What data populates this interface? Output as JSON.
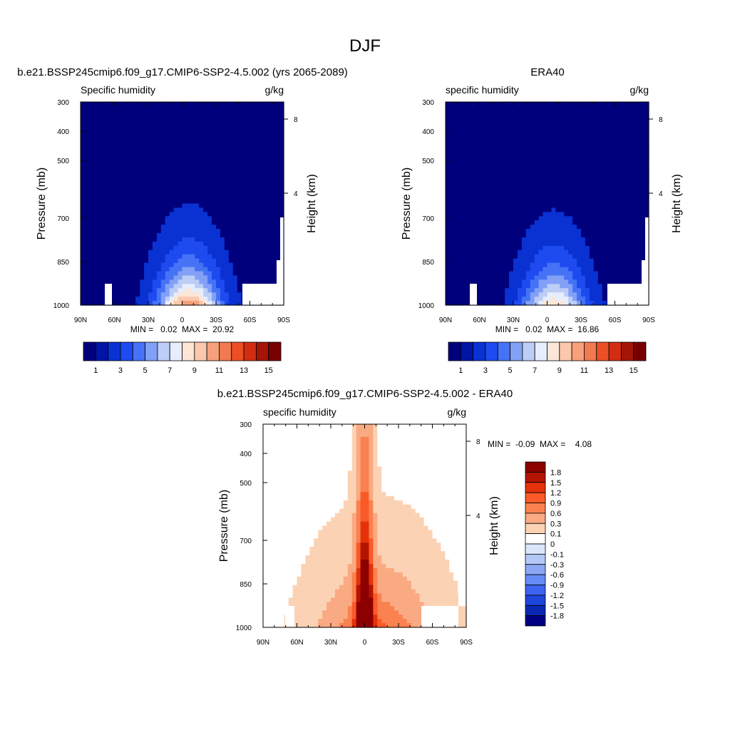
{
  "figure": {
    "title": "DJF"
  },
  "chart_data": [
    {
      "type": "heatmap",
      "title": "b.e21.BSSP245cmip6.f09_g17.CMIP6-SSP2-4.5.002 (yrs 2065-2089)",
      "left_label": "Specific humidity",
      "units": "g/kg",
      "ylabel": "Pressure (mb)",
      "ylabel_right": "Height (km)",
      "x_ticks": [
        "90N",
        "60N",
        "30N",
        "0",
        "30S",
        "60S",
        "90S"
      ],
      "y_ticks": [
        "300",
        "400",
        "500",
        "700",
        "850",
        "1000"
      ],
      "y_ticks_right": [
        "8",
        "4"
      ],
      "stats": "MIN =   0.02  MAX =  20.92",
      "surface_max": 20.92,
      "color_levels": [
        "1",
        "3",
        "5",
        "7",
        "9",
        "11",
        "13",
        "15"
      ]
    },
    {
      "type": "heatmap",
      "title": "ERA40",
      "left_label": "specific humidity",
      "units": "g/kg",
      "ylabel": "Pressure (mb)",
      "ylabel_right": "Height (km)",
      "x_ticks": [
        "90N",
        "60N",
        "30N",
        "0",
        "30S",
        "60S",
        "90S"
      ],
      "y_ticks": [
        "300",
        "400",
        "500",
        "700",
        "850",
        "1000"
      ],
      "y_ticks_right": [
        "8",
        "4"
      ],
      "stats": "MIN =   0.02  MAX =  16.86",
      "surface_max": 16.86,
      "color_levels": [
        "1",
        "3",
        "5",
        "7",
        "9",
        "11",
        "13",
        "15"
      ]
    },
    {
      "type": "heatmap",
      "title": "b.e21.BSSP245cmip6.f09_g17.CMIP6-SSP2-4.5.002 - ERA40",
      "left_label": "specific humidity",
      "units": "g/kg",
      "ylabel": "Pressure (mb)",
      "ylabel_right": "Height (km)",
      "x_ticks": [
        "90N",
        "60N",
        "30N",
        "0",
        "30S",
        "60S",
        "90S"
      ],
      "y_ticks": [
        "300",
        "400",
        "500",
        "700",
        "850",
        "1000"
      ],
      "y_ticks_right": [
        "8",
        "4"
      ],
      "stats": "MIN =  -0.09  MAX =    4.08",
      "color_levels": [
        "1.8",
        "1.5",
        "1.2",
        "0.9",
        "0.6",
        "0.3",
        "0.1",
        "0",
        "-0.1",
        "-0.3",
        "-0.6",
        "-0.9",
        "-1.2",
        "-1.5",
        "-1.8"
      ]
    }
  ],
  "palettes": {
    "humidity": [
      "#00007d",
      "#0014a5",
      "#0a32d2",
      "#1e4bf0",
      "#4673f5",
      "#82a0f5",
      "#bccdf6",
      "#e6edfc",
      "#fde6d6",
      "#fbc8ae",
      "#f7a07c",
      "#f27a4f",
      "#ec4f26",
      "#d22d12",
      "#a51405",
      "#780000"
    ],
    "difference": [
      "#8c0000",
      "#b41400",
      "#e6320a",
      "#fa5a28",
      "#fa8250",
      "#faaa82",
      "#fcd2b4",
      "#ffffff",
      "#dbe6fa",
      "#b4c8f8",
      "#8ca8f5",
      "#648cf5",
      "#3c64f0",
      "#1e46dc",
      "#0a28b4",
      "#000082"
    ]
  }
}
